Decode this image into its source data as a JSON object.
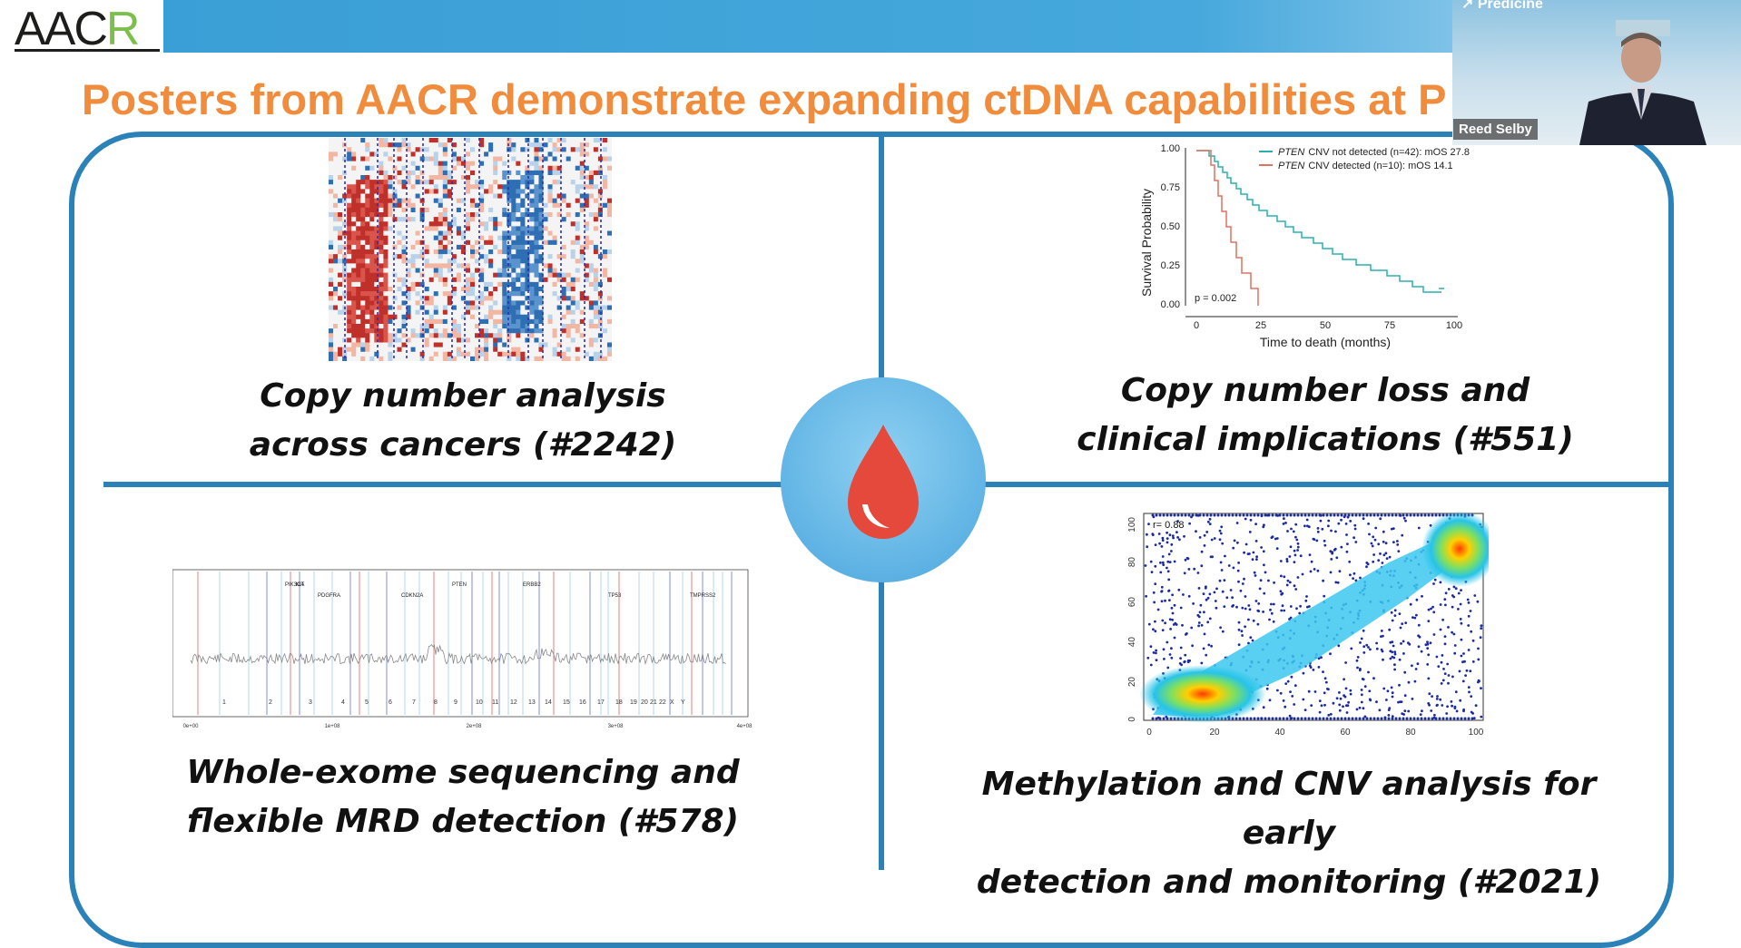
{
  "header": {
    "logo_text_left": "AAC",
    "logo_text_right": "R",
    "title": "Posters from AACR demonstrate expanding ctDNA capabilities at P"
  },
  "video": {
    "brand": "Predicine",
    "speaker_name": "Reed Selby"
  },
  "panels": {
    "top_left": {
      "caption_line1": "Copy number analysis",
      "caption_line2": "across cancers (#2242)"
    },
    "top_right": {
      "caption_line1": "Copy number loss and",
      "caption_line2": "clinical implications (#551)"
    },
    "bottom_left": {
      "caption_line1": "Whole-exome sequencing and",
      "caption_line2": "flexible MRD detection (#578)"
    },
    "bottom_right": {
      "caption_line1": "Methylation and CNV analysis for early",
      "caption_line2": "detection and monitoring (#2021)"
    }
  },
  "center_icon": "blood-drop-icon",
  "colors": {
    "accent_blue": "#2b82b8",
    "title_orange": "#f08c3c",
    "drop_red": "#e5493c"
  },
  "km_plot": {
    "ylabel": "Survival Probability",
    "xlabel": "Time to death (months)",
    "yticks": [
      "0.00",
      "0.25",
      "0.50",
      "0.75",
      "1.00"
    ],
    "xticks": [
      "0",
      "25",
      "50",
      "75",
      "100"
    ],
    "legend_not_detected_gene": "PTEN",
    "legend_not_detected": "CNV not detected (n=42): mOS 27.8",
    "legend_detected_gene": "PTEN",
    "legend_detected": "CNV detected (n=10): mOS 14.1",
    "pvalue": "p = 0.002"
  },
  "scatter_plot": {
    "annotation": "r= 0.88",
    "xticks": [
      "0",
      "20",
      "40",
      "60",
      "80",
      "100"
    ],
    "yticks": [
      "0",
      "20",
      "40",
      "60",
      "80",
      "100"
    ]
  },
  "wes_plot": {
    "chromosomes": [
      "1",
      "2",
      "3",
      "4",
      "5",
      "6",
      "7",
      "8",
      "9",
      "10",
      "11",
      "12",
      "13",
      "14",
      "15",
      "16",
      "17",
      "18",
      "19",
      "20",
      "21",
      "22",
      "X",
      "Y"
    ],
    "genes": [
      "PIK3CA",
      "PDGFRA",
      "KIT",
      "CDKN2A",
      "PTEN",
      "TP53",
      "ERBB2",
      "TMPRSS2"
    ],
    "xticks": [
      "0e+00",
      "1e+08",
      "2e+08",
      "3e+08",
      "4e+08"
    ]
  }
}
